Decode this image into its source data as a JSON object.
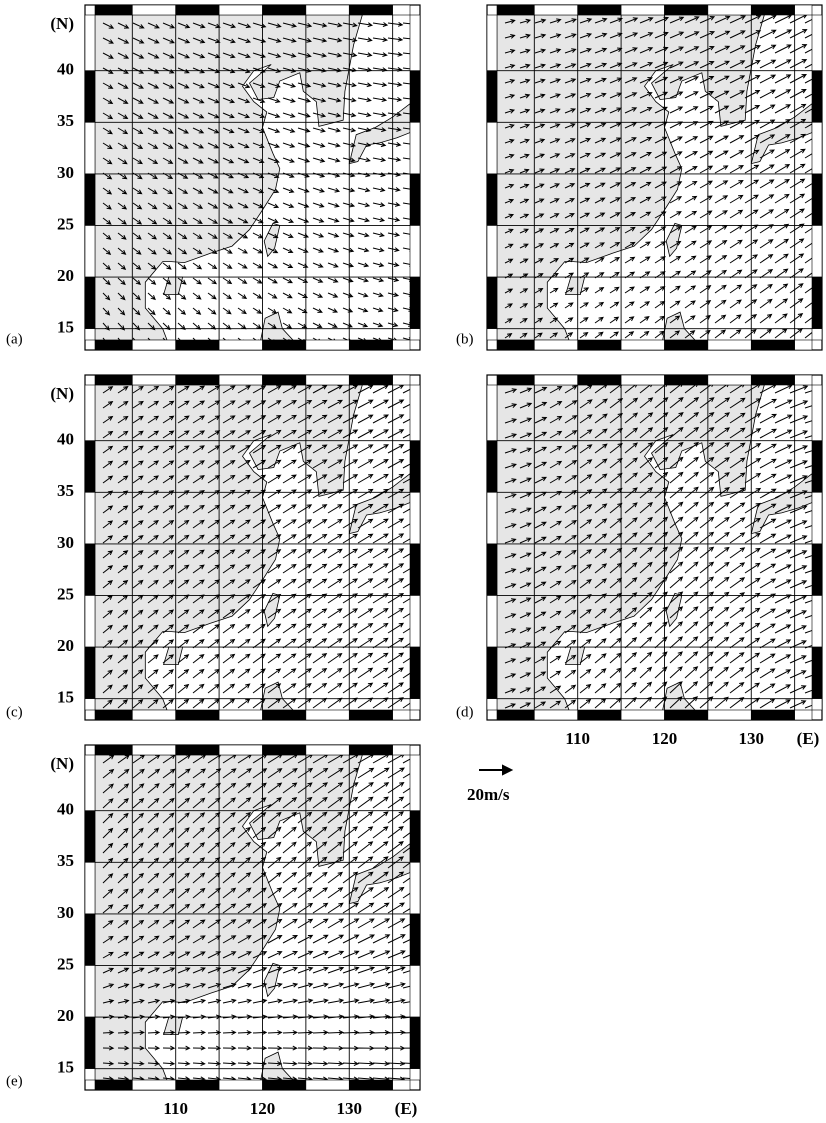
{
  "panels": [
    {
      "label": "(a)"
    },
    {
      "label": "(b)"
    },
    {
      "label": "(c)"
    },
    {
      "label": "(d)"
    },
    {
      "label": "(e)"
    }
  ],
  "lat_labels": [
    "(N)",
    "40",
    "35",
    "30",
    "25",
    "20",
    "15"
  ],
  "lon_labels": [
    "110",
    "120",
    "130",
    "(E)"
  ],
  "scale_label": "20m/s"
}
